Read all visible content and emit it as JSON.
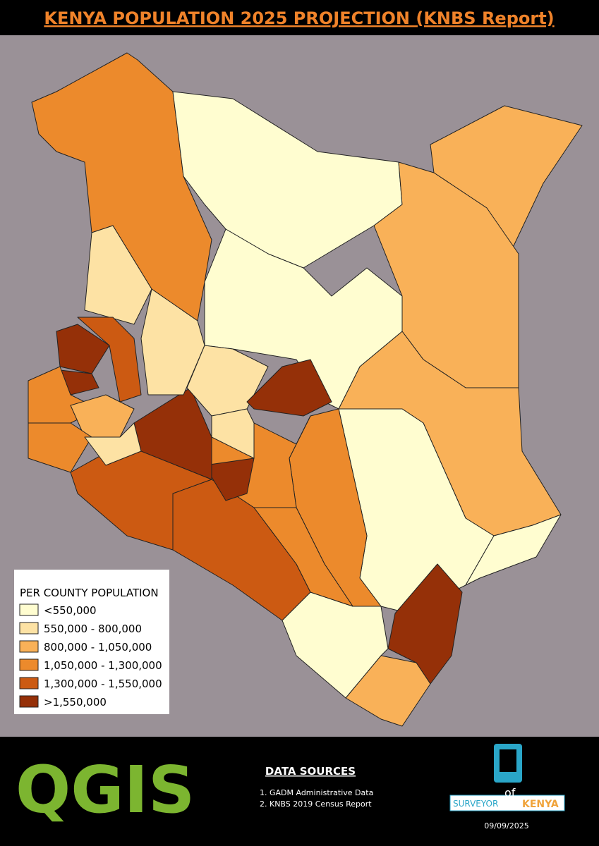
{
  "header": {
    "title": "KENYA POPULATION 2025 PROJECTION (KNBS Report)"
  },
  "legend": {
    "title": "PER COUNTY POPULATION",
    "items": [
      {
        "label": "<550,000",
        "color": "#fffdd0"
      },
      {
        "label": "550,000 - 800,000",
        "color": "#fde2a4"
      },
      {
        "label": "800,000 - 1,050,000",
        "color": "#f9b158"
      },
      {
        "label": "1,050,000 - 1,300,000",
        "color": "#ec8a2c"
      },
      {
        "label": "1,300,000 - 1,550,000",
        "color": "#cc5a12"
      },
      {
        "label": ">1,550,000",
        "color": "#953008"
      }
    ]
  },
  "footer": {
    "logo": "QGIS",
    "data_sources": {
      "heading": "DATA SOURCES",
      "items": [
        "1. GADM Administrative Data",
        "2. KNBS 2019 Census Report"
      ]
    },
    "badge": {
      "surveyor": "SURVEYOR",
      "of": "of",
      "kenya": "KENYA"
    },
    "date": "09/09/2025"
  }
}
